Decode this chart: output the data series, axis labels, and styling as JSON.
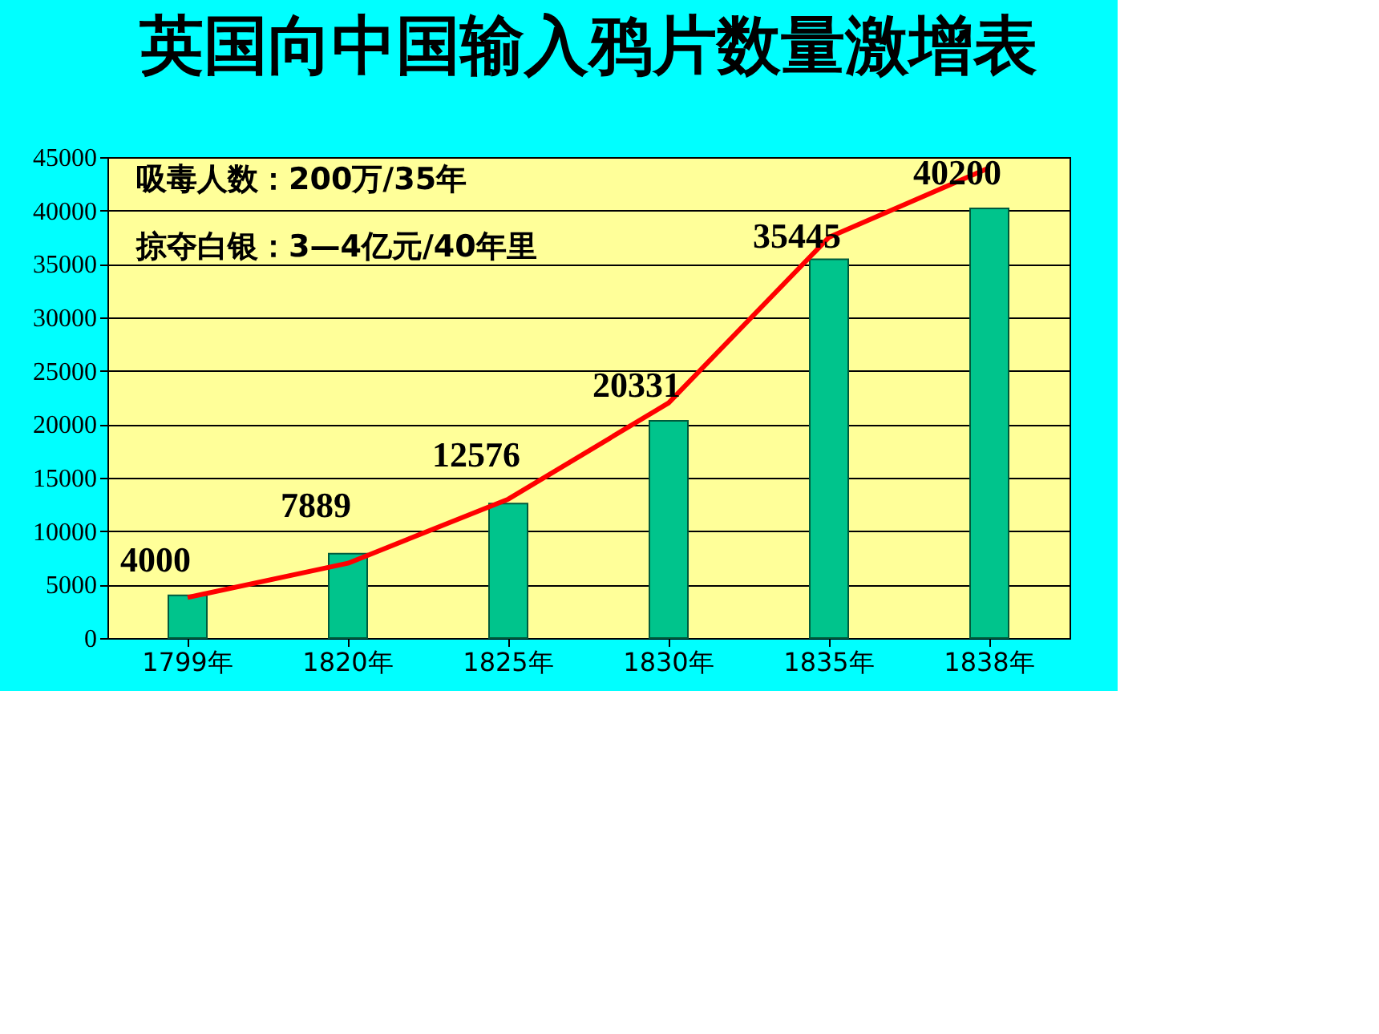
{
  "chart_data": {
    "type": "bar",
    "title": "英国向中国输入鸦片数量激增表",
    "categories": [
      "1799年",
      "1820年",
      "1825年",
      "1830年",
      "1835年",
      "1838年"
    ],
    "series": [
      {
        "color": "#00c48c",
        "values": [
          4000,
          7889,
          12576,
          20331,
          35445,
          40200
        ],
        "value_labels": [
          "4000",
          "7889",
          "12576",
          "20331",
          "35445",
          "40200"
        ]
      },
      {
        "type": "line",
        "color": "#ff0000",
        "values": [
          3800,
          7000,
          13000,
          22000,
          37500,
          44000
        ]
      }
    ],
    "annotations": [
      "吸毒人数：200万/35年",
      "掠夺白银：3—4亿元/40年里"
    ],
    "ylim": [
      0,
      45000
    ],
    "yticks": [
      0,
      5000,
      10000,
      15000,
      20000,
      25000,
      30000,
      35000,
      40000,
      45000
    ],
    "grid": "y"
  }
}
